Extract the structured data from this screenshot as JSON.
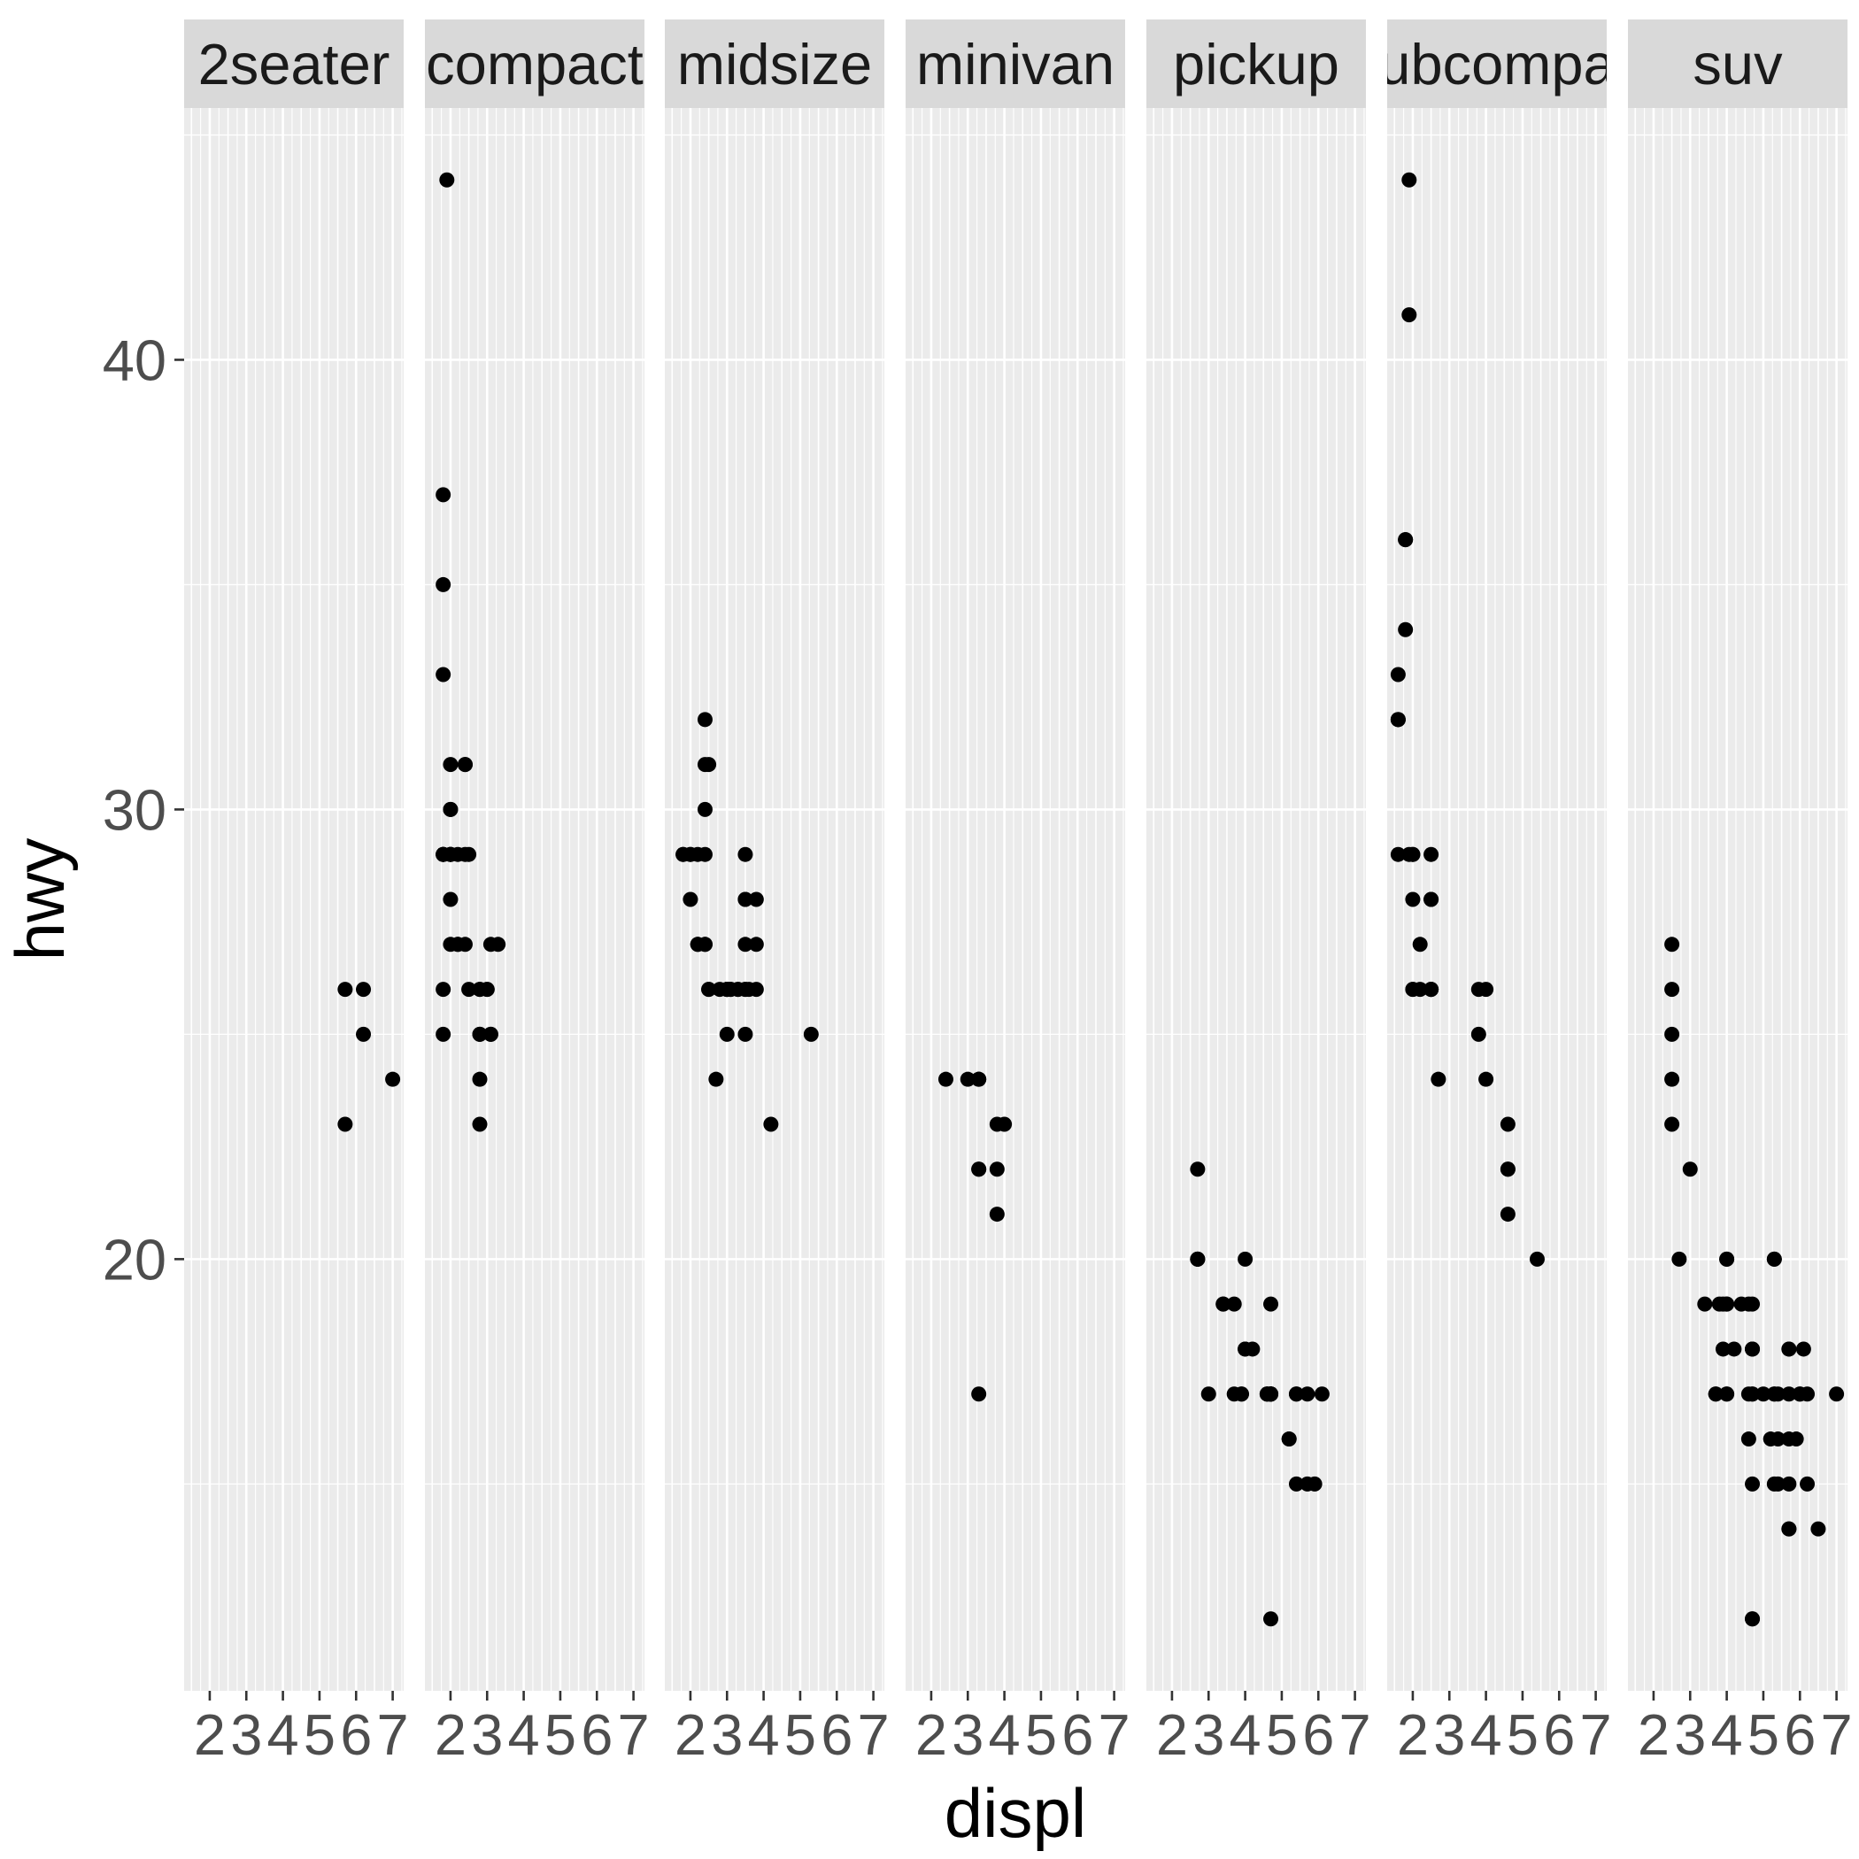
{
  "chart_data": {
    "type": "scatter",
    "facet_by": "class",
    "xlabel": "displ",
    "ylabel": "hwy",
    "xlim": [
      1.3,
      7.3
    ],
    "ylim": [
      10.4,
      45.6
    ],
    "x_ticks": [
      2,
      3,
      4,
      5,
      6,
      7
    ],
    "x_tick_labels": [
      "2",
      "3",
      "4",
      "5",
      "6",
      "7"
    ],
    "y_ticks": [
      20,
      30,
      40
    ],
    "y_tick_labels": [
      "20",
      "30",
      "40"
    ],
    "grid": true,
    "colors": {
      "panel_background": "#ebebeb",
      "grid": "#ffffff",
      "strip_background": "#d9d9d9",
      "point": "#000000"
    },
    "panels": [
      {
        "label": "2seater",
        "points": [
          [
            5.7,
            26
          ],
          [
            5.7,
            23
          ],
          [
            6.2,
            26
          ],
          [
            6.2,
            25
          ],
          [
            7.0,
            24
          ]
        ]
      },
      {
        "label": "compact",
        "points": [
          [
            1.8,
            29
          ],
          [
            1.8,
            29
          ],
          [
            2.0,
            31
          ],
          [
            2.0,
            30
          ],
          [
            2.8,
            26
          ],
          [
            2.8,
            26
          ],
          [
            3.1,
            27
          ],
          [
            1.8,
            26
          ],
          [
            1.8,
            25
          ],
          [
            2.0,
            28
          ],
          [
            2.0,
            27
          ],
          [
            2.8,
            25
          ],
          [
            2.8,
            25
          ],
          [
            3.1,
            25
          ],
          [
            3.1,
            25
          ],
          [
            2.2,
            27
          ],
          [
            2.2,
            29
          ],
          [
            2.4,
            31
          ],
          [
            2.4,
            31
          ],
          [
            3.0,
            26
          ],
          [
            3.0,
            26
          ],
          [
            3.3,
            27
          ],
          [
            1.8,
            29
          ],
          [
            1.8,
            29
          ],
          [
            2.0,
            29
          ],
          [
            2.0,
            29
          ],
          [
            2.8,
            24
          ],
          [
            2.8,
            23
          ],
          [
            1.9,
            44
          ],
          [
            2.0,
            29
          ],
          [
            2.0,
            29
          ],
          [
            2.5,
            29
          ],
          [
            1.8,
            37
          ],
          [
            1.8,
            35
          ],
          [
            1.8,
            33
          ],
          [
            2.0,
            30
          ],
          [
            2.2,
            27
          ],
          [
            2.4,
            27
          ],
          [
            2.4,
            29
          ],
          [
            2.5,
            26
          ]
        ]
      },
      {
        "label": "midsize",
        "points": [
          [
            2.4,
            27
          ],
          [
            2.4,
            30
          ],
          [
            3.1,
            26
          ],
          [
            3.5,
            29
          ],
          [
            3.6,
            26
          ],
          [
            2.5,
            26
          ],
          [
            2.5,
            26
          ],
          [
            3.3,
            26
          ],
          [
            3.3,
            26
          ],
          [
            3.5,
            28
          ],
          [
            3.5,
            28
          ],
          [
            3.8,
            26
          ],
          [
            3.8,
            27
          ],
          [
            2.4,
            31
          ],
          [
            2.4,
            32
          ],
          [
            2.5,
            31
          ],
          [
            3.0,
            26
          ],
          [
            3.0,
            26
          ],
          [
            2.7,
            24
          ],
          [
            3.5,
            25
          ],
          [
            1.8,
            29
          ],
          [
            1.8,
            29
          ],
          [
            2.0,
            29
          ],
          [
            2.0,
            29
          ],
          [
            2.0,
            28
          ],
          [
            2.8,
            26
          ],
          [
            3.1,
            26
          ],
          [
            2.2,
            27
          ],
          [
            2.2,
            29
          ],
          [
            2.4,
            27
          ],
          [
            2.4,
            29
          ],
          [
            3.0,
            26
          ],
          [
            3.0,
            26
          ],
          [
            3.5,
            27
          ],
          [
            4.2,
            23
          ],
          [
            5.3,
            25
          ],
          [
            2.2,
            27
          ],
          [
            3.0,
            25
          ],
          [
            3.8,
            28
          ],
          [
            3.5,
            26
          ],
          [
            3.5,
            26
          ]
        ]
      },
      {
        "label": "minivan",
        "points": [
          [
            2.4,
            24
          ],
          [
            3.0,
            24
          ],
          [
            3.3,
            22
          ],
          [
            3.3,
            22
          ],
          [
            3.3,
            24
          ],
          [
            3.3,
            24
          ],
          [
            3.3,
            17
          ],
          [
            3.8,
            22
          ],
          [
            3.8,
            21
          ],
          [
            3.8,
            23
          ],
          [
            4.0,
            23
          ]
        ]
      },
      {
        "label": "pickup",
        "points": [
          [
            2.7,
            20
          ],
          [
            2.7,
            20
          ],
          [
            2.7,
            22
          ],
          [
            3.0,
            17
          ],
          [
            3.7,
            17
          ],
          [
            3.7,
            19
          ],
          [
            3.9,
            17
          ],
          [
            3.9,
            17
          ],
          [
            4.7,
            12
          ],
          [
            4.7,
            17
          ],
          [
            4.7,
            17
          ],
          [
            4.7,
            17
          ],
          [
            5.2,
            16
          ],
          [
            5.2,
            16
          ],
          [
            5.7,
            15
          ],
          [
            5.9,
            15
          ],
          [
            4.7,
            17
          ],
          [
            4.7,
            17
          ],
          [
            4.7,
            17
          ],
          [
            5.7,
            17
          ],
          [
            6.1,
            17
          ],
          [
            4.2,
            18
          ],
          [
            4.6,
            17
          ],
          [
            4.6,
            17
          ],
          [
            4.6,
            17
          ],
          [
            5.4,
            17
          ],
          [
            5.4,
            17
          ],
          [
            5.4,
            15
          ],
          [
            2.7,
            20
          ],
          [
            3.4,
            19
          ],
          [
            3.4,
            19
          ],
          [
            4.0,
            20
          ],
          [
            4.7,
            19
          ],
          [
            4.7,
            17
          ],
          [
            4.0,
            18
          ],
          [
            4.0,
            18
          ]
        ]
      },
      {
        "label": "subcompact",
        "points": [
          [
            3.8,
            26
          ],
          [
            3.8,
            25
          ],
          [
            4.0,
            26
          ],
          [
            4.0,
            24
          ],
          [
            4.6,
            21
          ],
          [
            4.6,
            22
          ],
          [
            4.6,
            23
          ],
          [
            4.6,
            22
          ],
          [
            5.4,
            20
          ],
          [
            1.6,
            33
          ],
          [
            1.6,
            32
          ],
          [
            1.6,
            32
          ],
          [
            1.6,
            29
          ],
          [
            1.6,
            32
          ],
          [
            1.8,
            34
          ],
          [
            1.8,
            36
          ],
          [
            1.8,
            36
          ],
          [
            2.0,
            29
          ],
          [
            2.2,
            26
          ],
          [
            2.2,
            27
          ],
          [
            2.5,
            26
          ],
          [
            2.5,
            28
          ],
          [
            2.5,
            26
          ],
          [
            2.5,
            26
          ],
          [
            2.7,
            24
          ],
          [
            2.0,
            28
          ],
          [
            2.0,
            29
          ],
          [
            2.0,
            26
          ],
          [
            2.0,
            26
          ],
          [
            2.5,
            29
          ],
          [
            1.9,
            44
          ],
          [
            1.9,
            41
          ],
          [
            2.5,
            26
          ],
          [
            1.9,
            29
          ],
          [
            2.5,
            28
          ]
        ]
      },
      {
        "label": "suv",
        "points": [
          [
            5.3,
            20
          ],
          [
            5.3,
            15
          ],
          [
            5.3,
            20
          ],
          [
            5.7,
            17
          ],
          [
            6.0,
            17
          ],
          [
            5.7,
            14
          ],
          [
            5.7,
            14
          ],
          [
            6.2,
            15
          ],
          [
            6.2,
            17
          ],
          [
            7.0,
            17
          ],
          [
            5.3,
            17
          ],
          [
            5.3,
            17
          ],
          [
            5.7,
            18
          ],
          [
            6.5,
            14
          ],
          [
            4.0,
            17
          ],
          [
            4.0,
            17
          ],
          [
            4.0,
            19
          ],
          [
            4.6,
            16
          ],
          [
            5.0,
            17
          ],
          [
            3.7,
            17
          ],
          [
            3.7,
            17
          ],
          [
            3.9,
            19
          ],
          [
            3.9,
            18
          ],
          [
            4.7,
            12
          ],
          [
            4.7,
            18
          ],
          [
            4.7,
            17
          ],
          [
            5.2,
            16
          ],
          [
            5.7,
            15
          ],
          [
            5.9,
            16
          ],
          [
            4.7,
            18
          ],
          [
            4.7,
            17
          ],
          [
            4.7,
            12
          ],
          [
            4.7,
            19
          ],
          [
            5.7,
            18
          ],
          [
            6.1,
            18
          ],
          [
            4.0,
            20
          ],
          [
            4.0,
            19
          ],
          [
            4.6,
            17
          ],
          [
            4.6,
            19
          ],
          [
            5.4,
            15
          ],
          [
            5.4,
            17
          ],
          [
            3.8,
            19
          ],
          [
            3.0,
            22
          ],
          [
            2.5,
            25
          ],
          [
            2.5,
            27
          ],
          [
            2.5,
            26
          ],
          [
            2.5,
            24
          ],
          [
            2.5,
            23
          ],
          [
            2.7,
            20
          ],
          [
            3.4,
            19
          ],
          [
            4.0,
            20
          ],
          [
            4.2,
            18
          ],
          [
            4.4,
            19
          ],
          [
            4.7,
            18
          ],
          [
            5.4,
            16
          ],
          [
            4.7,
            15
          ],
          [
            5.7,
            16
          ],
          [
            6.0,
            17
          ]
        ]
      }
    ],
    "panel_strip_labels": [
      "2seater",
      "compact",
      "midsize",
      "minivan",
      "pickup",
      "ubcompa",
      "suv"
    ]
  }
}
